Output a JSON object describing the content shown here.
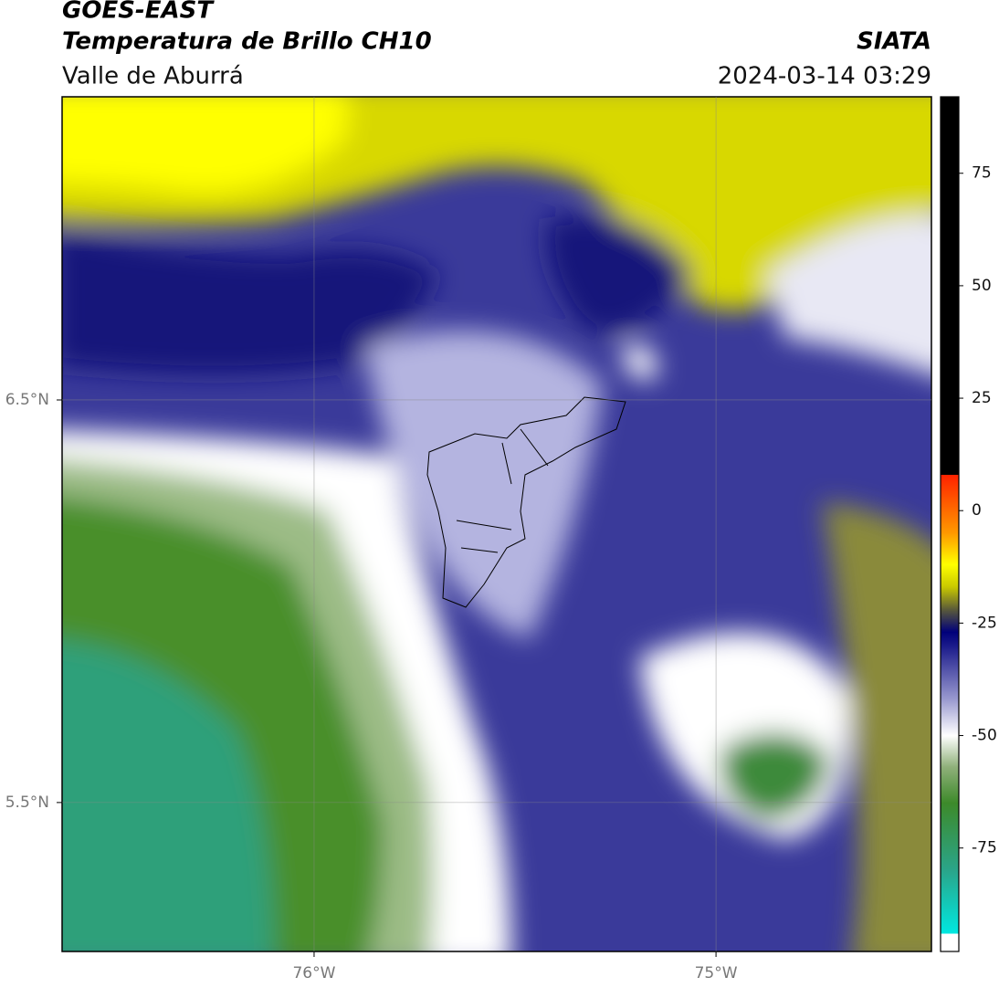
{
  "header": {
    "title": "GOES-EAST",
    "subtitle": "Temperatura de Brillo CH10",
    "region": "Valle de Aburrá",
    "source": "SIATA",
    "datetime": "2024-03-14 03:29"
  },
  "map": {
    "xlim": [
      -76.627,
      -74.464
    ],
    "ylim": [
      5.13,
      7.253
    ],
    "xticks": [
      {
        "value": -76,
        "label": "76°W"
      },
      {
        "value": -75,
        "label": "75°W"
      }
    ],
    "yticks": [
      {
        "value": 6.5,
        "label": "6.5°N"
      },
      {
        "value": 5.5,
        "label": "5.5°N"
      }
    ],
    "grid": true
  },
  "colorbar": {
    "lim": [
      -98,
      92
    ],
    "ticks": [
      75,
      50,
      25,
      0,
      -25,
      -50,
      -75
    ],
    "stops": [
      {
        "value": -98,
        "color": "#ffffff"
      },
      {
        "value": -94,
        "color": "#ffffff"
      },
      {
        "value": -94,
        "color": "#00e8e0"
      },
      {
        "value": -80,
        "color": "#2aa58a"
      },
      {
        "value": -65,
        "color": "#3d8a2a"
      },
      {
        "value": -57,
        "color": "#8fb07a"
      },
      {
        "value": -50,
        "color": "#ffffff"
      },
      {
        "value": -42,
        "color": "#9a9ad0"
      },
      {
        "value": -30,
        "color": "#1a1a8a"
      },
      {
        "value": -27,
        "color": "#00007a"
      },
      {
        "value": -22,
        "color": "#5a5a3a"
      },
      {
        "value": -17,
        "color": "#c8c800"
      },
      {
        "value": -12,
        "color": "#ffff00"
      },
      {
        "value": -5,
        "color": "#ff9900"
      },
      {
        "value": 8,
        "color": "#ff2200"
      },
      {
        "value": 8,
        "color": "#000000"
      },
      {
        "value": 92,
        "color": "#000000"
      }
    ]
  }
}
